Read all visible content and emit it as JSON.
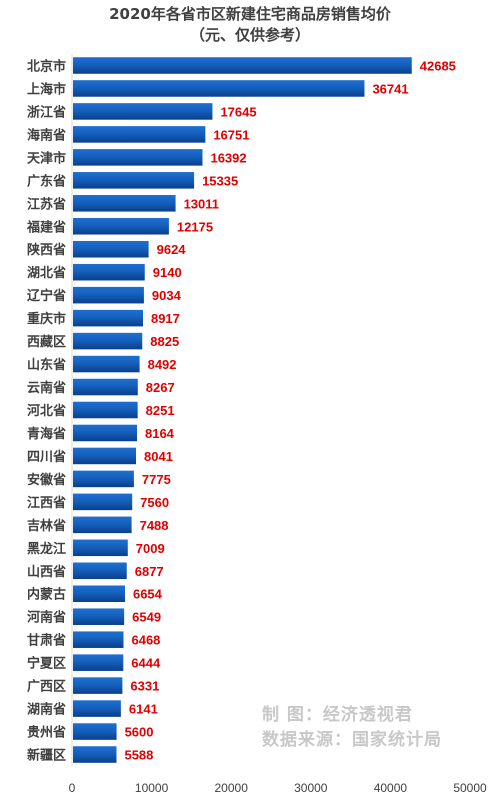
{
  "title_line1": "2020年各省市区新建住宅商品房销售均价",
  "title_line2": "（元、仅供参考）",
  "watermark_line1": "制      图：经济透视君",
  "watermark_line2": "数据来源：国家统计局",
  "colors": {
    "bar_top": "#1f6fd0",
    "bar_bottom": "#0a3f8c",
    "value_label": "#e00000",
    "category_label": "#404040",
    "axis": "#d9d9d9"
  },
  "chart_data": {
    "type": "bar",
    "orientation": "horizontal",
    "title": "2020年各省市区新建住宅商品房销售均价（元、仅供参考）",
    "categories": [
      "北京市",
      "上海市",
      "浙江省",
      "海南省",
      "天津市",
      "广东省",
      "江苏省",
      "福建省",
      "陕西省",
      "湖北省",
      "辽宁省",
      "重庆市",
      "西藏区",
      "山东省",
      "云南省",
      "河北省",
      "青海省",
      "四川省",
      "安徽省",
      "江西省",
      "吉林省",
      "黑龙江",
      "山西省",
      "内蒙古",
      "河南省",
      "甘肃省",
      "宁夏区",
      "广西区",
      "湖南省",
      "贵州省",
      "新疆区"
    ],
    "values": [
      42685,
      36741,
      17645,
      16751,
      16392,
      15335,
      13011,
      12175,
      9624,
      9140,
      9034,
      8917,
      8825,
      8492,
      8267,
      8251,
      8164,
      8041,
      7775,
      7560,
      7488,
      7009,
      6877,
      6654,
      6549,
      6468,
      6444,
      6331,
      6141,
      5600,
      5588
    ],
    "xlim": [
      0,
      50000
    ],
    "xticks": [
      0,
      10000,
      20000,
      30000,
      40000,
      50000
    ],
    "xlabel": "",
    "ylabel": "",
    "grid": false,
    "data_labels": true
  }
}
